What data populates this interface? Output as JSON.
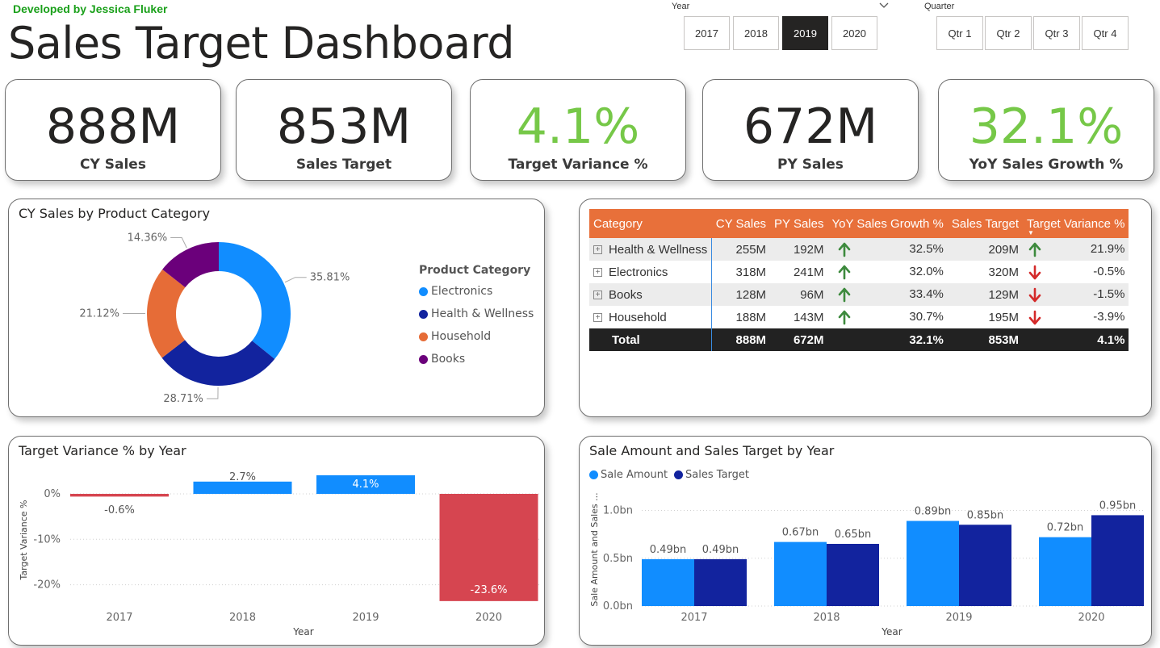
{
  "header": {
    "developer": "Developed by Jessica Fluker",
    "title": "Sales Target Dashboard"
  },
  "year_slicer": {
    "label": "Year",
    "options": [
      "2017",
      "2018",
      "2019",
      "2020"
    ],
    "selected": "2019"
  },
  "quarter_slicer": {
    "label": "Quarter",
    "options": [
      "Qtr 1",
      "Qtr 2",
      "Qtr 3",
      "Qtr 4"
    ]
  },
  "kpis": [
    {
      "value": "888M",
      "label": "CY Sales",
      "color": "#252423"
    },
    {
      "value": "853M",
      "label": "Sales Target",
      "color": "#252423"
    },
    {
      "value": "4.1%",
      "label": "Target Variance %",
      "color": "#76c848"
    },
    {
      "value": "672M",
      "label": "PY Sales",
      "color": "#252423"
    },
    {
      "value": "32.1%",
      "label": "YoY Sales Growth %",
      "color": "#76c848"
    }
  ],
  "donut": {
    "title": "CY Sales by Product Category",
    "legend_title": "Product Category",
    "legend": [
      "Electronics",
      "Health & Wellness",
      "Household",
      "Books"
    ]
  },
  "matrix": {
    "headers": [
      "Category",
      "CY Sales",
      "PY Sales",
      "YoY Sales Growth %",
      "Sales Target",
      "Target Variance %"
    ],
    "rows": [
      {
        "category": "Health & Wellness",
        "cy": "255M",
        "py": "192M",
        "yoy_dir": "up",
        "yoy": "32.5%",
        "target": "209M",
        "tv_dir": "up",
        "tv": "21.9%"
      },
      {
        "category": "Electronics",
        "cy": "318M",
        "py": "241M",
        "yoy_dir": "up",
        "yoy": "32.0%",
        "target": "320M",
        "tv_dir": "down",
        "tv": "-0.5%"
      },
      {
        "category": "Books",
        "cy": "128M",
        "py": "96M",
        "yoy_dir": "up",
        "yoy": "33.4%",
        "target": "129M",
        "tv_dir": "down",
        "tv": "-1.5%"
      },
      {
        "category": "Household",
        "cy": "188M",
        "py": "143M",
        "yoy_dir": "up",
        "yoy": "30.7%",
        "target": "195M",
        "tv_dir": "down",
        "tv": "-3.9%"
      }
    ],
    "total": {
      "category": "Total",
      "cy": "888M",
      "py": "672M",
      "yoy": "32.1%",
      "target": "853M",
      "tv": "4.1%"
    },
    "colors": {
      "header_bg": "#e8703a",
      "up": "#3d8a3d",
      "down": "#d42a2a"
    }
  },
  "chart_data": [
    {
      "type": "pie",
      "title": "CY Sales by Product Category",
      "categories": [
        "Electronics",
        "Health & Wellness",
        "Household",
        "Books"
      ],
      "values": [
        35.81,
        28.71,
        21.12,
        14.36
      ],
      "labels": [
        "35.81%",
        "28.71%",
        "21.12%",
        "14.36%"
      ],
      "colors": [
        "#118dff",
        "#12239e",
        "#e66c37",
        "#6b007b"
      ],
      "legend_title": "Product Category"
    },
    {
      "type": "bar",
      "title": "Target Variance % by Year",
      "categories": [
        "2017",
        "2018",
        "2019",
        "2020"
      ],
      "values": [
        -0.6,
        2.7,
        4.1,
        -23.6
      ],
      "labels": [
        "-0.6%",
        "2.7%",
        "4.1%",
        "-23.6%"
      ],
      "xlabel": "Year",
      "ylabel": "Target Variance %",
      "ylim": [
        -23.6,
        4.1
      ],
      "yticks": [
        0,
        -10,
        -20
      ],
      "ytick_labels": [
        "0%",
        "-10%",
        "-20%"
      ],
      "colors": {
        "positive": "#118dff",
        "negative": "#d64550"
      }
    },
    {
      "type": "bar",
      "title": "Sale Amount and Sales Target by Year",
      "categories": [
        "2017",
        "2018",
        "2019",
        "2020"
      ],
      "series": [
        {
          "name": "Sale Amount",
          "values": [
            0.49,
            0.67,
            0.89,
            0.72
          ],
          "labels": [
            "0.49bn",
            "0.67bn",
            "0.89bn",
            "0.72bn"
          ],
          "color": "#118dff"
        },
        {
          "name": "Sales Target",
          "values": [
            0.49,
            0.65,
            0.85,
            0.95
          ],
          "labels": [
            "0.49bn",
            "0.65bn",
            "0.85bn",
            "0.95bn"
          ],
          "color": "#12239e"
        }
      ],
      "xlabel": "Year",
      "ylabel": "Sale Amount and Sales ...",
      "ylim": [
        0,
        1.0
      ],
      "yticks": [
        0,
        0.5,
        1.0
      ],
      "ytick_labels": [
        "0.0bn",
        "0.5bn",
        "1.0bn"
      ]
    }
  ]
}
